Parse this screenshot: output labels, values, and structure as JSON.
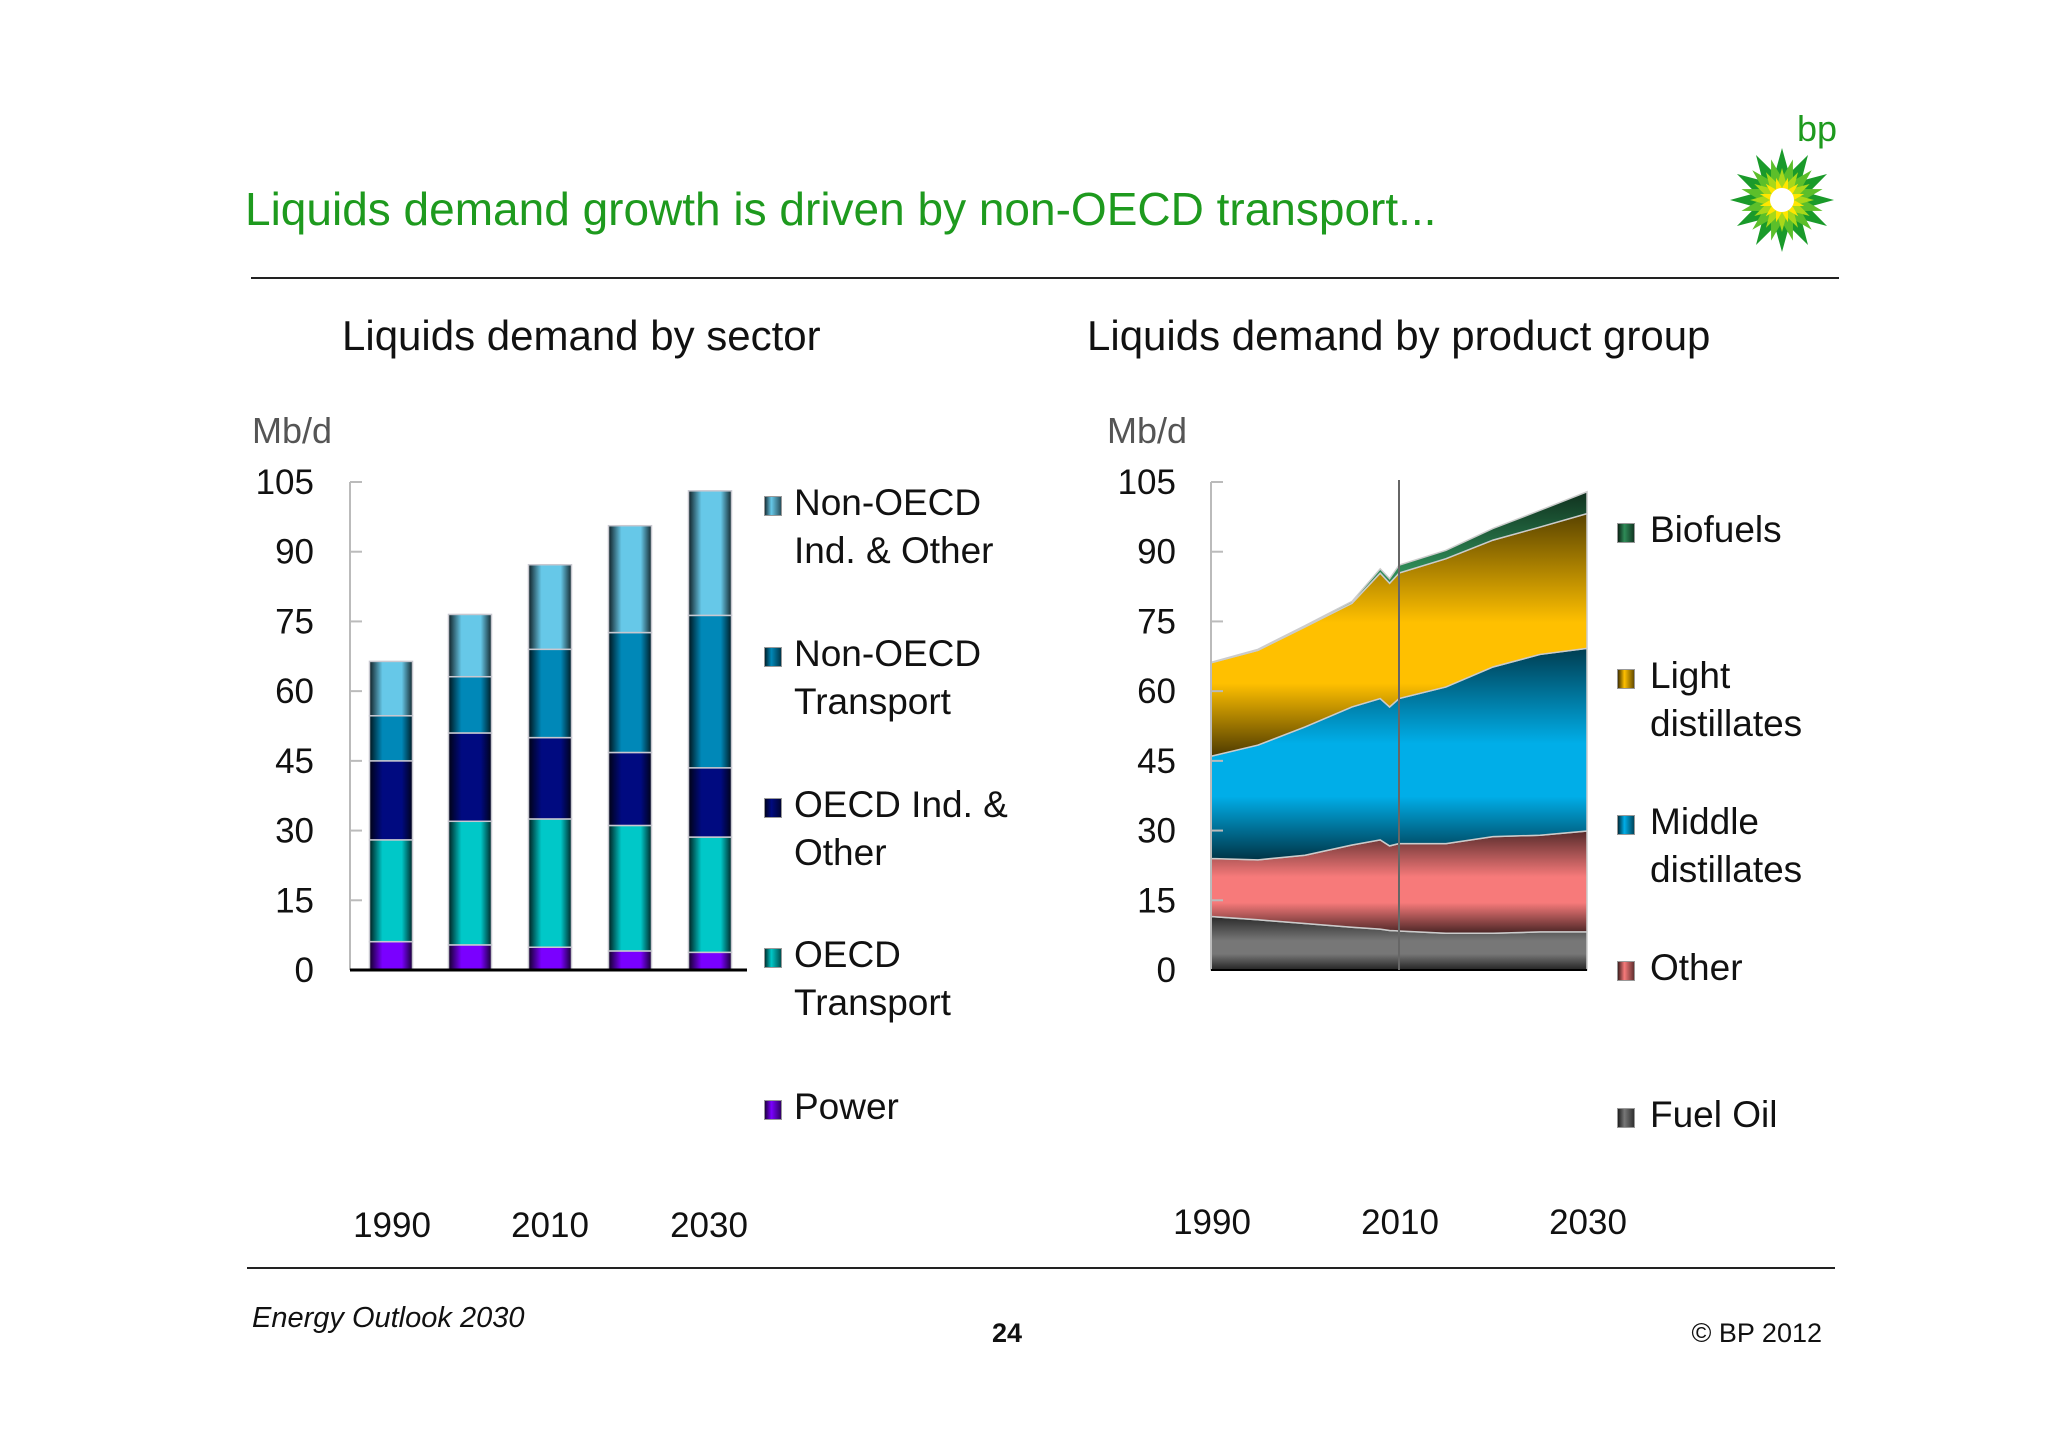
{
  "header": {
    "title": "Liquids demand growth is driven by non-OECD transport...",
    "logo_text": "bp",
    "logo_icon": "bp-helios-sunflower-icon"
  },
  "footer": {
    "source": "Energy Outlook 2030",
    "page_number": "24",
    "copyright": "© BP 2012"
  },
  "colors": {
    "title": "#1e9a1e",
    "power": "#7a00ff",
    "oecd_transport": "#00c8c8",
    "oecd_ind_other": "#000a80",
    "non_oecd_transport": "#0088b8",
    "non_oecd_ind_other": "#66c8e8",
    "fuel_oil": "#777777",
    "other": "#f77a7a",
    "middle_distillates": "#00aee8",
    "light_distillates": "#ffc000",
    "biofuels": "#2e8b57"
  },
  "chart_data": [
    {
      "type": "bar",
      "stacked": true,
      "title": "Liquids demand by sector",
      "ylabel": "Mb/d",
      "xlabel": "",
      "ylim": [
        0,
        105
      ],
      "yticks": [
        "0",
        "15",
        "30",
        "45",
        "60",
        "75",
        "90",
        "105"
      ],
      "categories": [
        "1990",
        "2000",
        "2010",
        "2020",
        "2030"
      ],
      "xtick_labels": [
        "1990",
        "2010",
        "2030"
      ],
      "legend_position": "right",
      "series": [
        {
          "name": "Power",
          "line2": "",
          "color_key": "power",
          "values": [
            6.1,
            5.4,
            4.9,
            4.1,
            3.8
          ]
        },
        {
          "name": "OECD",
          "line2": "Transport",
          "color_key": "oecd_transport",
          "values": [
            21.9,
            26.6,
            27.6,
            27.0,
            24.8
          ]
        },
        {
          "name": "OECD Ind. &",
          "line2": "Other",
          "color_key": "oecd_ind_other",
          "values": [
            17.0,
            19.0,
            17.5,
            15.7,
            14.9
          ]
        },
        {
          "name": "Non-OECD",
          "line2": "Transport",
          "color_key": "non_oecd_transport",
          "values": [
            9.7,
            12.1,
            19.0,
            25.8,
            32.8
          ]
        },
        {
          "name": "Non-OECD",
          "line2": "Ind. & Other",
          "color_key": "non_oecd_ind_other",
          "values": [
            11.7,
            13.4,
            18.2,
            23.0,
            26.8
          ]
        }
      ]
    },
    {
      "type": "area",
      "stacked": true,
      "title": "Liquids demand by product group",
      "ylabel": "Mb/d",
      "xlabel": "",
      "ylim": [
        0,
        105
      ],
      "xlim": [
        1990,
        2030
      ],
      "yticks": [
        "0",
        "15",
        "30",
        "45",
        "60",
        "75",
        "90",
        "105"
      ],
      "xtick_labels": [
        "1990",
        "2010",
        "2030"
      ],
      "divider_year": 2010,
      "legend_position": "right",
      "x": [
        1990,
        1995,
        2000,
        2005,
        2008,
        2009,
        2010,
        2015,
        2020,
        2025,
        2030
      ],
      "series": [
        {
          "name": "Fuel Oil",
          "line2": "",
          "color_key": "fuel_oil",
          "values": [
            11.5,
            10.8,
            10.0,
            9.2,
            8.8,
            8.5,
            8.4,
            7.9,
            7.9,
            8.2,
            8.2
          ]
        },
        {
          "name": "Other",
          "line2": "",
          "color_key": "other",
          "values": [
            12.5,
            12.9,
            14.7,
            17.7,
            19.2,
            18.2,
            18.8,
            19.3,
            20.8,
            20.8,
            21.7
          ]
        },
        {
          "name": "Middle",
          "line2": "distillates",
          "color_key": "middle_distillates",
          "values": [
            22.0,
            24.7,
            27.6,
            29.7,
            30.4,
            29.9,
            31.2,
            33.7,
            36.5,
            38.9,
            39.3
          ]
        },
        {
          "name": "Light",
          "line2": "distillates",
          "color_key": "light_distillates",
          "values": [
            20.1,
            20.4,
            21.5,
            22.3,
            27.0,
            26.6,
            27.0,
            27.6,
            27.3,
            27.4,
            29.0
          ]
        },
        {
          "name": "Biofuels",
          "line2": "",
          "color_key": "biofuels",
          "values": [
            0.1,
            0.2,
            0.3,
            0.4,
            0.9,
            1.0,
            1.7,
            1.8,
            2.5,
            3.6,
            4.7
          ]
        }
      ]
    }
  ]
}
